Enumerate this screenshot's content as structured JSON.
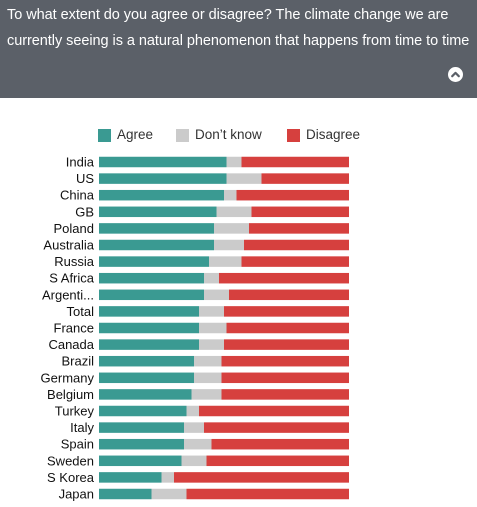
{
  "question": {
    "line1": "To what extent do you agree or disagree? The climate change we are",
    "line2": "currently seeing is a natural phenomenon that happens from time to time"
  },
  "toggle_icon": "chevron-up-icon",
  "colors": {
    "header_bg": "#5b6068",
    "agree": "#3a9a92",
    "dont_know": "#cbcbcb",
    "disagree": "#d6403e"
  },
  "legend": {
    "agree": "Agree",
    "dont_know": "Don’t know",
    "disagree": "Disagree"
  },
  "chart_data": {
    "type": "bar",
    "orientation": "horizontal",
    "stacked": true,
    "legend_position": "top",
    "categories": [
      "India",
      "US",
      "China",
      "GB",
      "Poland",
      "Australia",
      "Russia",
      "S Africa",
      "Argenti...",
      "Total",
      "France",
      "Canada",
      "Brazil",
      "Germany",
      "Belgium",
      "Turkey",
      "Italy",
      "Spain",
      "Sweden",
      "S Korea",
      "Japan"
    ],
    "series": [
      {
        "name": "Agree",
        "values": [
          51,
          51,
          50,
          47,
          46,
          46,
          44,
          42,
          42,
          40,
          40,
          40,
          38,
          38,
          37,
          35,
          34,
          34,
          33,
          25,
          21
        ]
      },
      {
        "name": "Don’t know",
        "values": [
          6,
          14,
          5,
          14,
          14,
          12,
          13,
          6,
          10,
          10,
          11,
          10,
          11,
          11,
          12,
          5,
          8,
          11,
          10,
          5,
          14
        ]
      },
      {
        "name": "Disagree",
        "values": [
          43,
          35,
          45,
          39,
          40,
          42,
          43,
          52,
          48,
          50,
          49,
          50,
          51,
          51,
          51,
          60,
          58,
          55,
          57,
          70,
          65
        ]
      }
    ],
    "xlim": [
      0,
      100
    ]
  }
}
